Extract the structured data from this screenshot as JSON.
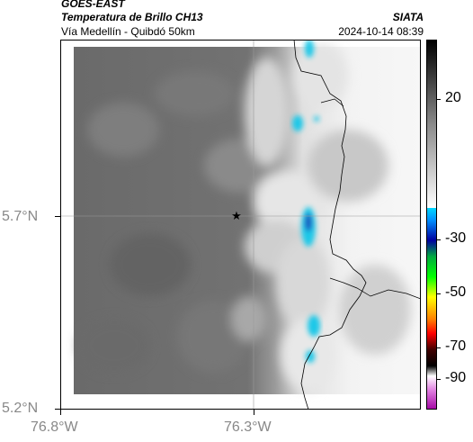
{
  "header": {
    "satellite": "GOES-EAST",
    "product": "Temperatura de Brillo CH13",
    "region": "Vía Medellín - Quibdó 50km",
    "organization": "SIATA",
    "datetime": "2024-10-14 08:39"
  },
  "map": {
    "lat_labels": [
      "5.7°N",
      "5.2°N"
    ],
    "lon_labels": [
      "76.8°W",
      "76.3°W"
    ],
    "marker_icon": "star-icon"
  },
  "colorbar": {
    "tick_labels": [
      "20",
      "-30",
      "-50",
      "-70",
      "-90"
    ],
    "colors": [
      "#000000",
      "#808080",
      "#ffffff",
      "#00c8ff",
      "#0000a0",
      "#00ff00",
      "#ffff00",
      "#ff0000",
      "#000000",
      "#ffffff",
      "#b000b0"
    ]
  },
  "colors": {
    "cold_cloud": "#1ec8e8",
    "land": "#6e6e6e",
    "warm_cloud": "#f2f2f2"
  }
}
